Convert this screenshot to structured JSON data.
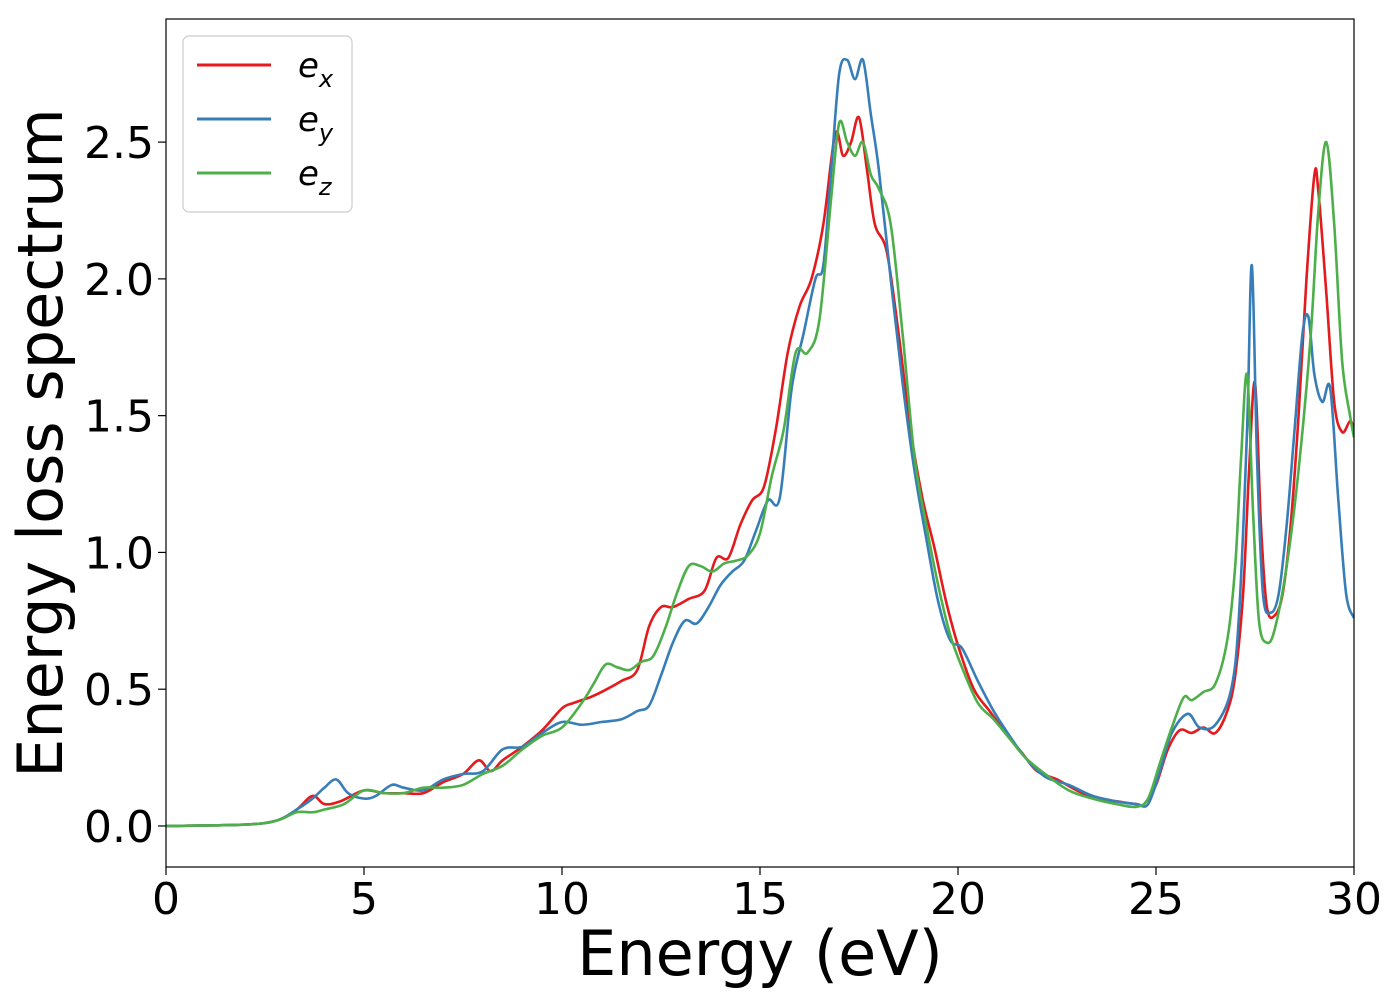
{
  "chart_data": {
    "type": "line",
    "xlabel": "Energy (eV)",
    "ylabel": "Energy loss spectrum",
    "xlim": [
      0,
      30
    ],
    "ylim": [
      -0.15,
      2.95
    ],
    "xticks": [
      0,
      5,
      10,
      15,
      20,
      25,
      30
    ],
    "xtick_labels": [
      "0",
      "5",
      "10",
      "15",
      "20",
      "25",
      "30"
    ],
    "yticks": [
      0.0,
      0.5,
      1.0,
      1.5,
      2.0,
      2.5
    ],
    "ytick_labels": [
      "0.0",
      "0.5",
      "1.0",
      "1.5",
      "2.0",
      "2.5"
    ],
    "grid": false,
    "legend_position": "top-left",
    "series": [
      {
        "name": "e_x",
        "label_main": "e",
        "label_sub": "x",
        "color": "#e41a1c",
        "x": [
          0,
          2,
          2.8,
          3.3,
          3.7,
          4.0,
          4.4,
          5.0,
          5.5,
          6.0,
          6.5,
          7.0,
          7.5,
          7.9,
          8.2,
          8.5,
          9.0,
          9.5,
          10.0,
          10.3,
          10.7,
          11.0,
          11.5,
          11.9,
          12.2,
          12.5,
          12.8,
          13.2,
          13.6,
          13.9,
          14.2,
          14.5,
          14.8,
          15.1,
          15.4,
          15.7,
          16.0,
          16.3,
          16.6,
          16.9,
          17.1,
          17.3,
          17.5,
          17.7,
          17.9,
          18.2,
          18.5,
          18.8,
          19.1,
          19.4,
          19.7,
          20.0,
          20.4,
          20.8,
          21.2,
          21.6,
          22.0,
          22.5,
          23.0,
          23.5,
          24.0,
          24.5,
          24.7,
          25.0,
          25.3,
          25.6,
          25.9,
          26.2,
          26.5,
          26.8,
          27.0,
          27.2,
          27.35,
          27.5,
          27.65,
          27.8,
          28.0,
          28.2,
          28.4,
          28.6,
          28.8,
          29.0,
          29.1,
          29.3,
          29.5,
          29.7,
          29.9,
          30.0
        ],
        "y": [
          0.0,
          0.005,
          0.02,
          0.06,
          0.11,
          0.08,
          0.09,
          0.13,
          0.12,
          0.12,
          0.12,
          0.16,
          0.19,
          0.24,
          0.2,
          0.24,
          0.29,
          0.35,
          0.43,
          0.45,
          0.47,
          0.49,
          0.53,
          0.57,
          0.73,
          0.8,
          0.8,
          0.83,
          0.86,
          0.98,
          0.98,
          1.1,
          1.19,
          1.24,
          1.45,
          1.73,
          1.9,
          2.0,
          2.2,
          2.53,
          2.45,
          2.5,
          2.59,
          2.4,
          2.2,
          2.1,
          1.8,
          1.45,
          1.2,
          1.02,
          0.82,
          0.66,
          0.5,
          0.42,
          0.34,
          0.27,
          0.2,
          0.17,
          0.13,
          0.1,
          0.09,
          0.08,
          0.08,
          0.15,
          0.28,
          0.35,
          0.34,
          0.36,
          0.34,
          0.42,
          0.55,
          0.85,
          1.3,
          1.62,
          1.1,
          0.8,
          0.77,
          0.85,
          1.1,
          1.5,
          2.0,
          2.38,
          2.32,
          1.95,
          1.55,
          1.44,
          1.48,
          1.45
        ]
      },
      {
        "name": "e_y",
        "label_main": "e",
        "label_sub": "y",
        "color": "#377eb8",
        "x": [
          0,
          2,
          2.8,
          3.3,
          3.7,
          4.0,
          4.3,
          4.6,
          5.0,
          5.3,
          5.7,
          6.0,
          6.5,
          7.0,
          7.5,
          8.0,
          8.5,
          9.0,
          9.5,
          10.0,
          10.5,
          11.0,
          11.5,
          11.9,
          12.2,
          12.5,
          12.8,
          13.1,
          13.4,
          13.7,
          14.0,
          14.3,
          14.6,
          14.9,
          15.2,
          15.5,
          15.8,
          16.1,
          16.4,
          16.6,
          16.8,
          17.0,
          17.2,
          17.4,
          17.6,
          17.8,
          18.0,
          18.3,
          18.6,
          18.9,
          19.2,
          19.5,
          19.8,
          20.1,
          20.5,
          20.9,
          21.3,
          21.7,
          22.2,
          22.8,
          23.4,
          24.0,
          24.5,
          24.8,
          25.1,
          25.4,
          25.8,
          26.1,
          26.5,
          26.9,
          27.1,
          27.3,
          27.42,
          27.55,
          27.7,
          27.9,
          28.1,
          28.3,
          28.5,
          28.7,
          28.85,
          29.0,
          29.2,
          29.4,
          29.6,
          29.8,
          30.0
        ],
        "y": [
          0.0,
          0.005,
          0.02,
          0.06,
          0.1,
          0.14,
          0.17,
          0.12,
          0.1,
          0.11,
          0.15,
          0.14,
          0.13,
          0.17,
          0.19,
          0.2,
          0.28,
          0.29,
          0.34,
          0.38,
          0.37,
          0.38,
          0.39,
          0.42,
          0.44,
          0.55,
          0.67,
          0.75,
          0.74,
          0.8,
          0.88,
          0.93,
          0.97,
          1.08,
          1.19,
          1.2,
          1.6,
          1.8,
          2.0,
          2.05,
          2.4,
          2.75,
          2.8,
          2.73,
          2.8,
          2.6,
          2.4,
          2.0,
          1.62,
          1.3,
          1.05,
          0.82,
          0.68,
          0.65,
          0.53,
          0.42,
          0.33,
          0.25,
          0.18,
          0.15,
          0.11,
          0.09,
          0.08,
          0.08,
          0.2,
          0.34,
          0.41,
          0.36,
          0.37,
          0.5,
          0.78,
          1.45,
          2.05,
          1.35,
          0.85,
          0.78,
          0.85,
          1.1,
          1.45,
          1.8,
          1.86,
          1.65,
          1.55,
          1.6,
          1.2,
          0.85,
          0.76
        ]
      },
      {
        "name": "e_z",
        "label_main": "e",
        "label_sub": "z",
        "color": "#4daf4a",
        "x": [
          0,
          2,
          2.8,
          3.3,
          3.7,
          4.0,
          4.5,
          5.0,
          5.5,
          6.0,
          6.5,
          7.0,
          7.5,
          8.0,
          8.5,
          9.0,
          9.5,
          10.0,
          10.5,
          10.8,
          11.1,
          11.4,
          11.7,
          12.0,
          12.3,
          12.6,
          12.9,
          13.2,
          13.5,
          13.8,
          14.1,
          14.4,
          14.7,
          15.0,
          15.3,
          15.6,
          15.9,
          16.2,
          16.5,
          16.8,
          17.0,
          17.2,
          17.4,
          17.6,
          17.8,
          18.0,
          18.3,
          18.6,
          18.9,
          19.2,
          19.5,
          19.8,
          20.1,
          20.5,
          20.9,
          21.3,
          21.7,
          22.2,
          22.8,
          23.4,
          24.0,
          24.5,
          24.8,
          25.1,
          25.4,
          25.7,
          25.9,
          26.2,
          26.5,
          26.8,
          27.0,
          27.15,
          27.3,
          27.45,
          27.6,
          27.8,
          28.0,
          28.3,
          28.6,
          28.9,
          29.1,
          29.3,
          29.5,
          29.7,
          29.9,
          30.0
        ],
        "y": [
          0.0,
          0.005,
          0.02,
          0.05,
          0.05,
          0.06,
          0.08,
          0.13,
          0.12,
          0.12,
          0.14,
          0.14,
          0.15,
          0.19,
          0.22,
          0.28,
          0.33,
          0.36,
          0.45,
          0.52,
          0.59,
          0.58,
          0.57,
          0.6,
          0.62,
          0.72,
          0.85,
          0.95,
          0.95,
          0.93,
          0.96,
          0.97,
          0.99,
          1.07,
          1.28,
          1.45,
          1.73,
          1.73,
          1.85,
          2.3,
          2.57,
          2.5,
          2.45,
          2.5,
          2.38,
          2.33,
          2.2,
          1.8,
          1.35,
          1.1,
          0.88,
          0.7,
          0.58,
          0.45,
          0.39,
          0.32,
          0.25,
          0.19,
          0.13,
          0.1,
          0.08,
          0.07,
          0.1,
          0.23,
          0.36,
          0.47,
          0.46,
          0.49,
          0.52,
          0.68,
          0.95,
          1.35,
          1.65,
          1.15,
          0.75,
          0.67,
          0.72,
          0.95,
          1.3,
          1.78,
          2.25,
          2.5,
          2.2,
          1.7,
          1.5,
          1.42
        ]
      }
    ]
  }
}
